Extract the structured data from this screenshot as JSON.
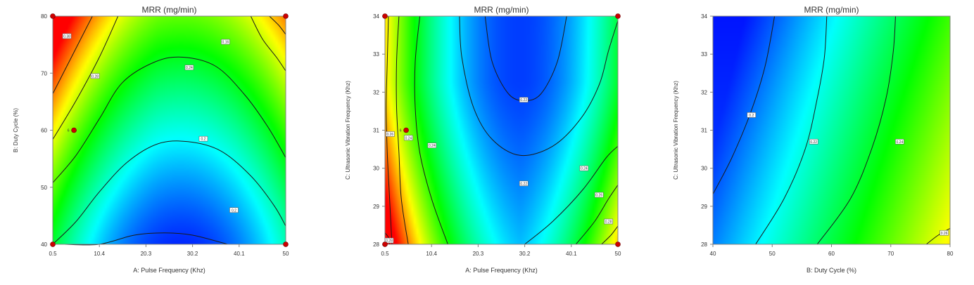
{
  "chart_data": [
    {
      "type": "heatmap",
      "title": "MRR (mg/min)",
      "xlabel": "A: Pulse Frequency (Khz)",
      "ylabel": "B: Duty Cycle (%)",
      "xlim": [
        0.5,
        50
      ],
      "ylim": [
        40,
        80
      ],
      "x_ticks": [
        "0.5",
        "10.4",
        "20.3",
        "30.2",
        "40.1",
        "50"
      ],
      "y_ticks": [
        "40",
        "50",
        "60",
        "70",
        "80"
      ],
      "colormap": [
        "#0000ff",
        "#00ffff",
        "#00ff00",
        "#ffff00",
        "#ff0000"
      ],
      "contour_labels": [
        {
          "x": 3.5,
          "y": 76.5,
          "text": "0.38"
        },
        {
          "x": 9.5,
          "y": 69.5,
          "text": "0.28"
        },
        {
          "x": 29.5,
          "y": 71.0,
          "text": "0.24"
        },
        {
          "x": 37.2,
          "y": 75.5,
          "text": "0.16"
        },
        {
          "x": 32.5,
          "y": 58.5,
          "text": "0.2"
        },
        {
          "x": 39.0,
          "y": 46.0,
          "text": "0.2"
        }
      ],
      "design_points": [
        {
          "x": 0.5,
          "y": 80
        },
        {
          "x": 50,
          "y": 80
        },
        {
          "x": 0.5,
          "y": 40
        },
        {
          "x": 50,
          "y": 40
        },
        {
          "x": 5.0,
          "y": 60,
          "label": "6"
        }
      ]
    },
    {
      "type": "heatmap",
      "title": "MRR (mg/min)",
      "xlabel": "A: Pulse Frequency (Khz)",
      "ylabel": "C: Ultrasonic Vibration Frequency (Khz)",
      "xlim": [
        0.5,
        50
      ],
      "ylim": [
        28,
        34
      ],
      "x_ticks": [
        "0.5",
        "10.4",
        "20.3",
        "30.2",
        "40.1",
        "50"
      ],
      "y_ticks": [
        "28",
        "29",
        "30",
        "31",
        "32",
        "33",
        "34"
      ],
      "colormap": [
        "#0000ff",
        "#00ffff",
        "#00ff00",
        "#ffff00",
        "#ff0000"
      ],
      "contour_labels": [
        {
          "x": 1.6,
          "y": 30.9,
          "text": "0.26"
        },
        {
          "x": 5.5,
          "y": 30.8,
          "text": "0.24"
        },
        {
          "x": 10.5,
          "y": 30.6,
          "text": "0.24"
        },
        {
          "x": 30.0,
          "y": 31.8,
          "text": "0.22"
        },
        {
          "x": 30.0,
          "y": 29.6,
          "text": "0.22"
        },
        {
          "x": 42.8,
          "y": 30.0,
          "text": "0.24"
        },
        {
          "x": 46.0,
          "y": 29.3,
          "text": "0.26"
        },
        {
          "x": 48.0,
          "y": 28.6,
          "text": "0.28"
        },
        {
          "x": 1.4,
          "y": 28.1,
          "text": "0.28"
        }
      ],
      "design_points": [
        {
          "x": 0.5,
          "y": 34
        },
        {
          "x": 50,
          "y": 34
        },
        {
          "x": 0.5,
          "y": 28
        },
        {
          "x": 50,
          "y": 28
        },
        {
          "x": 5.0,
          "y": 31,
          "label": "6"
        }
      ]
    },
    {
      "type": "heatmap",
      "title": "MRR (mg/min)",
      "xlabel": "B: Duty Cycle (%)",
      "ylabel": "C: Ultrasonic Vibration Frequency (Khz)",
      "xlim": [
        40,
        80
      ],
      "ylim": [
        28,
        34
      ],
      "x_ticks": [
        "40",
        "50",
        "60",
        "70",
        "80"
      ],
      "y_ticks": [
        "28",
        "29",
        "30",
        "31",
        "32",
        "33",
        "34"
      ],
      "colormap": [
        "#0000ff",
        "#00ffff",
        "#00ff00",
        "#ffff00",
        "#ff0000"
      ],
      "contour_labels": [
        {
          "x": 46.5,
          "y": 31.4,
          "text": "0.2"
        },
        {
          "x": 57.0,
          "y": 30.7,
          "text": "0.22"
        },
        {
          "x": 71.5,
          "y": 30.7,
          "text": "0.24"
        },
        {
          "x": 79.0,
          "y": 28.3,
          "text": "0.26"
        }
      ],
      "design_points": []
    }
  ]
}
